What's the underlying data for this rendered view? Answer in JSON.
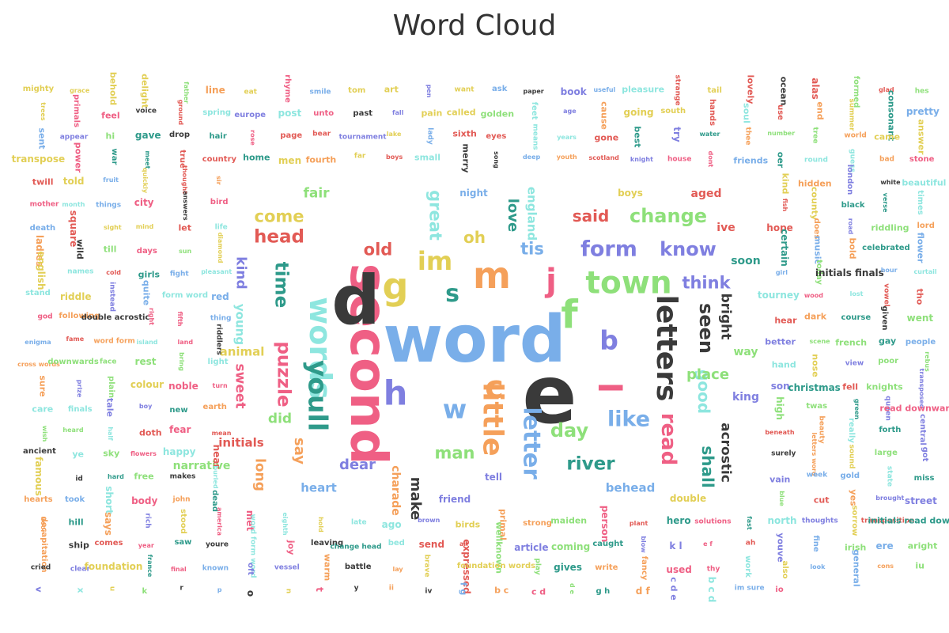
{
  "title": "Word Cloud",
  "palette": {
    "red": "#e25a55",
    "green": "#8ee07a",
    "blue": "#79aee9",
    "teal": "#2e9a8a",
    "yellow": "#e2cf55",
    "orange": "#f5a05a",
    "purple": "#7f7fe0",
    "pink": "#ef5f84",
    "dark": "#3a3a3a",
    "cyan": "#8ee6df"
  },
  "chart_data": {
    "type": "wordcloud",
    "title": "Word Cloud",
    "words": [
      {
        "text": "word",
        "weight": 100,
        "color": "blue",
        "orient": "h"
      },
      {
        "text": "e",
        "weight": 95,
        "color": "dark",
        "orient": "h"
      },
      {
        "text": "second",
        "weight": 90,
        "color": "pink",
        "orient": "v"
      },
      {
        "text": "d",
        "weight": 85,
        "color": "dark",
        "orient": "h"
      },
      {
        "text": "town",
        "weight": 70,
        "color": "green",
        "orient": "h"
      },
      {
        "text": "words",
        "weight": 68,
        "color": "cyan",
        "orient": "v"
      },
      {
        "text": "letters",
        "weight": 66,
        "color": "dark",
        "orient": "v"
      },
      {
        "text": "little",
        "weight": 64,
        "color": "orange",
        "orient": "v"
      },
      {
        "text": "youll",
        "weight": 62,
        "color": "teal",
        "orient": "v"
      },
      {
        "text": "f",
        "weight": 62,
        "color": "green",
        "orient": "h"
      },
      {
        "text": "im",
        "weight": 60,
        "color": "yellow",
        "orient": "h"
      },
      {
        "text": "g",
        "weight": 60,
        "color": "yellow",
        "orient": "h"
      },
      {
        "text": "m",
        "weight": 60,
        "color": "orange",
        "orient": "h"
      },
      {
        "text": "h",
        "weight": 58,
        "color": "purple",
        "orient": "h"
      },
      {
        "text": "j",
        "weight": 56,
        "color": "pink",
        "orient": "h"
      },
      {
        "text": "l",
        "weight": 56,
        "color": "pink",
        "orient": "v"
      },
      {
        "text": "letter",
        "weight": 56,
        "color": "blue",
        "orient": "v"
      },
      {
        "text": "c",
        "weight": 56,
        "color": "orange",
        "orient": "h"
      },
      {
        "text": "form",
        "weight": 54,
        "color": "purple",
        "orient": "h"
      },
      {
        "text": "like",
        "weight": 54,
        "color": "blue",
        "orient": "h"
      },
      {
        "text": "b",
        "weight": 52,
        "color": "purple",
        "orient": "h"
      },
      {
        "text": "read",
        "weight": 52,
        "color": "pink",
        "orient": "v"
      },
      {
        "text": "w",
        "weight": 52,
        "color": "blue",
        "orient": "h"
      },
      {
        "text": "know",
        "weight": 50,
        "color": "purple",
        "orient": "h"
      },
      {
        "text": "change",
        "weight": 50,
        "color": "green",
        "orient": "h"
      },
      {
        "text": "s",
        "weight": 50,
        "color": "teal",
        "orient": "h"
      },
      {
        "text": "seen",
        "weight": 50,
        "color": "dark",
        "orient": "v"
      },
      {
        "text": "day",
        "weight": 50,
        "color": "green",
        "orient": "h"
      },
      {
        "text": "river",
        "weight": 48,
        "color": "teal",
        "orient": "h"
      },
      {
        "text": "puzzle",
        "weight": 48,
        "color": "pink",
        "orient": "v"
      },
      {
        "text": "time",
        "weight": 48,
        "color": "teal",
        "orient": "v"
      },
      {
        "text": "head",
        "weight": 48,
        "color": "red",
        "orient": "h"
      },
      {
        "text": "old",
        "weight": 46,
        "color": "red",
        "orient": "h"
      },
      {
        "text": "tis",
        "weight": 46,
        "color": "blue",
        "orient": "h"
      },
      {
        "text": "think",
        "weight": 46,
        "color": "purple",
        "orient": "h"
      },
      {
        "text": "man",
        "weight": 46,
        "color": "green",
        "orient": "h"
      },
      {
        "text": "great",
        "weight": 46,
        "color": "cyan",
        "orient": "v"
      },
      {
        "text": "come",
        "weight": 46,
        "color": "yellow",
        "orient": "h"
      },
      {
        "text": "said",
        "weight": 44,
        "color": "red",
        "orient": "h"
      },
      {
        "text": "good",
        "weight": 44,
        "color": "cyan",
        "orient": "v"
      },
      {
        "text": "shall",
        "weight": 44,
        "color": "teal",
        "orient": "v"
      },
      {
        "text": "oh",
        "weight": 44,
        "color": "yellow",
        "orient": "h"
      },
      {
        "text": "love",
        "weight": 42,
        "color": "teal",
        "orient": "v"
      },
      {
        "text": "dear",
        "weight": 42,
        "color": "purple",
        "orient": "h"
      },
      {
        "text": "make",
        "weight": 42,
        "color": "dark",
        "orient": "v"
      },
      {
        "text": "say",
        "weight": 42,
        "color": "orange",
        "orient": "v"
      },
      {
        "text": "place",
        "weight": 42,
        "color": "green",
        "orient": "h"
      },
      {
        "text": "sweet",
        "weight": 40,
        "color": "pink",
        "orient": "v"
      },
      {
        "text": "long",
        "weight": 40,
        "color": "orange",
        "orient": "v"
      },
      {
        "text": "fair",
        "weight": 40,
        "color": "green",
        "orient": "h"
      },
      {
        "text": "kind",
        "weight": 40,
        "color": "purple",
        "orient": "v"
      },
      {
        "text": "acrostic",
        "weight": 40,
        "color": "dark",
        "orient": "v"
      },
      {
        "text": "bright",
        "weight": 40,
        "color": "dark",
        "orient": "v"
      },
      {
        "text": "did",
        "weight": 40,
        "color": "green",
        "orient": "h"
      },
      {
        "text": "initials",
        "weight": 38,
        "color": "red",
        "orient": "h"
      },
      {
        "text": "animal",
        "weight": 38,
        "color": "yellow",
        "orient": "h"
      },
      {
        "text": "heart",
        "weight": 38,
        "color": "blue",
        "orient": "h"
      },
      {
        "text": "behead",
        "weight": 38,
        "color": "blue",
        "orient": "h"
      },
      {
        "text": "young",
        "weight": 38,
        "color": "cyan",
        "orient": "v"
      },
      {
        "text": "england",
        "weight": 38,
        "color": "cyan",
        "orient": "v"
      },
      {
        "text": "charade",
        "weight": 36,
        "color": "orange",
        "orient": "v"
      },
      {
        "text": "narrative",
        "weight": 36,
        "color": "green",
        "orient": "h"
      },
      {
        "text": "soon",
        "weight": 36,
        "color": "teal",
        "orient": "h"
      },
      {
        "text": "ive",
        "weight": 36,
        "color": "red",
        "orient": "h"
      },
      {
        "text": "aged",
        "weight": 36,
        "color": "red",
        "orient": "h"
      },
      {
        "text": "way",
        "weight": 36,
        "color": "green",
        "orient": "h"
      },
      {
        "text": "king",
        "weight": 36,
        "color": "purple",
        "orient": "h"
      },
      {
        "text": "double",
        "weight": 34,
        "color": "yellow",
        "orient": "h"
      },
      {
        "text": "boys",
        "weight": 34,
        "color": "yellow",
        "orient": "h"
      },
      {
        "text": "friend",
        "weight": 34,
        "color": "purple",
        "orient": "h"
      },
      {
        "text": "tell",
        "weight": 34,
        "color": "purple",
        "orient": "h"
      },
      {
        "text": "night",
        "weight": 34,
        "color": "blue",
        "orient": "h"
      }
    ]
  },
  "decoration_words": [
    "mighty",
    "grace",
    "behold",
    "delight",
    "father",
    "line",
    "eat",
    "rhyme",
    "smile",
    "tom",
    "art",
    "pen",
    "want",
    "ask",
    "paper",
    "book",
    "useful",
    "pleasure",
    "strange",
    "tail",
    "lovely",
    "ocean",
    "alas",
    "formed",
    "glad",
    "hes",
    "trees",
    "primals",
    "feel",
    "voice",
    "ground",
    "spring",
    "europe",
    "post",
    "unto",
    "past",
    "fall",
    "pain",
    "called",
    "golden",
    "feet",
    "age",
    "cause",
    "going",
    "south",
    "hands",
    "soul",
    "use",
    "end",
    "summer",
    "consonant",
    "pretty",
    "sent",
    "appear",
    "hi",
    "gave",
    "drop",
    "hair",
    "rose",
    "page",
    "bear",
    "tournament",
    "lake",
    "lady",
    "sixth",
    "eyes",
    "means",
    "years",
    "gone",
    "best",
    "try",
    "water",
    "thee",
    "number",
    "tree",
    "world",
    "came",
    "answer",
    "transpose",
    "power",
    "war",
    "meet",
    "true",
    "country",
    "home",
    "men",
    "fourth",
    "far",
    "boys",
    "small",
    "merry",
    "song",
    "deep",
    "youth",
    "scotland",
    "knight",
    "house",
    "dont",
    "friends",
    "oer",
    "round",
    "guess",
    "bad",
    "stone",
    "twill",
    "told",
    "fruit",
    "quickly",
    "thought",
    "sir",
    "kind",
    "hidden",
    "london",
    "white",
    "beautiful",
    "mother",
    "month",
    "things",
    "city",
    "answers",
    "bird",
    "fish",
    "county",
    "black",
    "verse",
    "times",
    "death",
    "square",
    "sight",
    "mind",
    "let",
    "life",
    "hope",
    "does",
    "road",
    "riddling",
    "lord",
    "ladies",
    "wild",
    "till",
    "days",
    "sun",
    "diamond",
    "certain",
    "music",
    "bold",
    "celebrated",
    "flower",
    "english",
    "names",
    "cold",
    "girls",
    "fight",
    "pleasant",
    "girl",
    "today",
    "initials finals",
    "hour",
    "curtail",
    "stand",
    "riddle",
    "instead",
    "quite",
    "form word",
    "red",
    "tourney",
    "wood",
    "lost",
    "vowel",
    "tho",
    "god",
    "following",
    "double acrostic",
    "right",
    "fifth",
    "thing",
    "hear",
    "dark",
    "course",
    "given",
    "went",
    "enigma",
    "fame",
    "word form",
    "island",
    "land",
    "riddlers",
    "better",
    "scene",
    "french",
    "gay",
    "people",
    "cross words",
    "downwards",
    "face",
    "rest",
    "bring",
    "light",
    "hand",
    "nose",
    "view",
    "poor",
    "rebus",
    "sure",
    "prize",
    "plain",
    "colour",
    "noble",
    "turn",
    "son",
    "christmas",
    "fell",
    "knights",
    "transposed",
    "care",
    "finals",
    "tale",
    "boy",
    "new",
    "earth",
    "high",
    "twas",
    "green",
    "queen",
    "read downwards",
    "wish",
    "heard",
    "half",
    "doth",
    "fear",
    "mean",
    "beneath",
    "beauty",
    "really",
    "forth",
    "central",
    "ancient",
    "ye",
    "sky",
    "flowers",
    "happy",
    "near",
    "surely",
    "letters word",
    "sound",
    "large",
    "got",
    "famous",
    "id",
    "hard",
    "free",
    "makes",
    "buried",
    "vain",
    "week",
    "gold",
    "state",
    "miss",
    "hearts",
    "took",
    "short",
    "body",
    "john",
    "dead",
    "blue",
    "cut",
    "yes",
    "brought",
    "street",
    "door",
    "hill",
    "says",
    "rich",
    "stood",
    "america",
    "met",
    "eighth",
    "hold",
    "late",
    "ago",
    "brown",
    "birds",
    "primal",
    "strong",
    "maiden",
    "person",
    "plant",
    "hero",
    "solutions",
    "fast",
    "north",
    "thoughts",
    "sorrow",
    "transposition",
    "initials read downwards",
    "decapitation",
    "ship",
    "comes",
    "year",
    "saw",
    "youre",
    "word form word",
    "joy",
    "leaving",
    "change head",
    "bed",
    "send",
    "air",
    "wellknown",
    "article",
    "coming",
    "caught",
    "blow",
    "k l",
    "e f",
    "ah",
    "youve",
    "fine",
    "irish",
    "ere",
    "aright",
    "cried",
    "clear",
    "foundation",
    "france",
    "final",
    "known",
    "oft",
    "vessel",
    "warm",
    "battle",
    "lay",
    "brave",
    "expressed",
    "foundation words",
    "play",
    "gives",
    "write",
    "fancy",
    "used",
    "thy",
    "work",
    "also",
    "look",
    "general",
    "cons",
    "iu",
    "v",
    "x",
    "u",
    "k",
    "r",
    "p",
    "o",
    "n",
    "t",
    "y",
    "ii",
    "iv",
    "f g",
    "b c",
    "c d",
    "d e",
    "g h",
    "d f",
    "c d e",
    "b c d",
    "im sure",
    "io"
  ]
}
